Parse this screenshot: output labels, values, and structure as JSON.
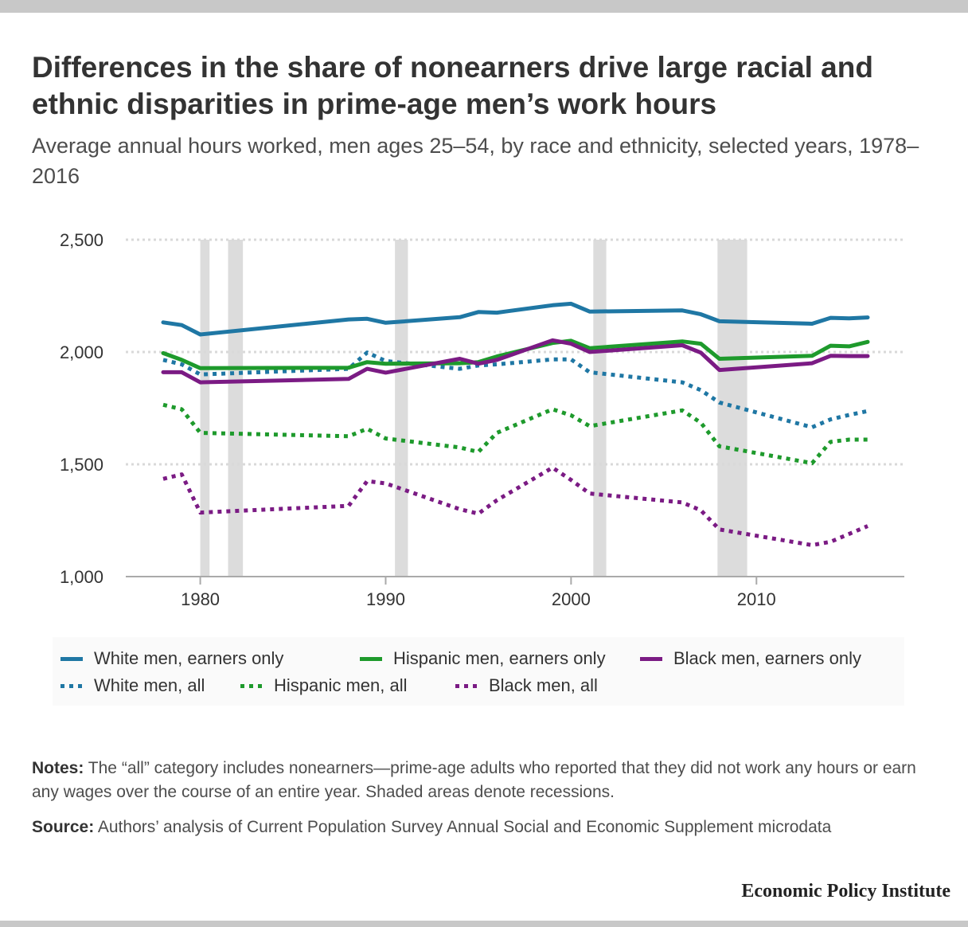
{
  "title": "Differences in the share of nonearners drive large racial and ethnic disparities in prime-age men’s work hours",
  "subtitle": "Average annual hours worked, men ages 25–54, by race and ethnicity, selected years, 1978–2016",
  "notes": {
    "label": "Notes:",
    "text": " The “all” category includes nonearners—prime-age adults who reported that they did not work any hours or earn any wages over the course of an entire year. Shaded areas denote recessions."
  },
  "source": {
    "label": "Source:",
    "text": " Authors’ analysis of Current Population Survey Annual Social and Economic Supplement microdata"
  },
  "brand": "Economic Policy Institute",
  "colors": {
    "white": "#1f77a4",
    "hispanic": "#1e9a2c",
    "black": "#7b1b84",
    "recession": "#dcdcdc",
    "grid": "#d9d9d9",
    "axis": "#aaaaaa"
  },
  "chart_data": {
    "type": "line",
    "title": "Differences in the share of nonearners drive large racial and ethnic disparities in prime-age men’s work hours",
    "subtitle": "Average annual hours worked, men ages 25–54, by race and ethnicity, selected years, 1978–2016",
    "xlabel": "",
    "ylabel": "",
    "xlim": [
      1976,
      2018
    ],
    "ylim": [
      1000,
      2500
    ],
    "xticks": [
      1980,
      1990,
      2000,
      2010
    ],
    "xtick_labels": [
      "1980",
      "1990",
      "2000",
      "2010"
    ],
    "yticks": [
      1000,
      1500,
      2000,
      2500
    ],
    "ytick_labels": [
      "1,000",
      "1,500",
      "2,000",
      "2,500"
    ],
    "grid": "horizontal dotted",
    "legend_position": "bottom",
    "recessions": [
      [
        1980.0,
        1980.5
      ],
      [
        1981.5,
        1982.3
      ],
      [
        1990.5,
        1991.2
      ],
      [
        2001.2,
        2001.9
      ],
      [
        2007.9,
        2009.5
      ]
    ],
    "series": [
      {
        "name": "White men, earners only",
        "group": "white",
        "style": "solid",
        "x": [
          1978,
          1979,
          1980,
          1988,
          1989,
          1990,
          1994,
          1995,
          1996,
          1999,
          2000,
          2001,
          2006,
          2007,
          2008,
          2013,
          2014,
          2015,
          2016
        ],
        "y": [
          2132,
          2120,
          2078,
          2145,
          2148,
          2130,
          2155,
          2178,
          2175,
          2208,
          2215,
          2180,
          2185,
          2168,
          2137,
          2126,
          2152,
          2150,
          2154
        ]
      },
      {
        "name": "Hispanic men, earners only",
        "group": "hispanic",
        "style": "solid",
        "x": [
          1978,
          1979,
          1980,
          1988,
          1989,
          1990,
          1994,
          1995,
          1996,
          1999,
          2000,
          2001,
          2006,
          2007,
          2008,
          2013,
          2014,
          2015,
          2016
        ],
        "y": [
          1995,
          1965,
          1928,
          1930,
          1955,
          1948,
          1950,
          1955,
          1980,
          2040,
          2050,
          2017,
          2047,
          2037,
          1970,
          1983,
          2028,
          2025,
          2045
        ]
      },
      {
        "name": "Black men, earners only",
        "group": "black",
        "style": "solid",
        "x": [
          1978,
          1979,
          1980,
          1988,
          1989,
          1990,
          1994,
          1995,
          1996,
          1999,
          2000,
          2001,
          2006,
          2007,
          2008,
          2013,
          2014,
          2015,
          2016
        ],
        "y": [
          1910,
          1910,
          1865,
          1880,
          1925,
          1908,
          1970,
          1948,
          1965,
          2052,
          2037,
          2000,
          2030,
          1997,
          1920,
          1950,
          1983,
          1982,
          1982
        ]
      },
      {
        "name": "White men, all",
        "group": "white",
        "style": "dotted",
        "x": [
          1978,
          1979,
          1980,
          1988,
          1989,
          1990,
          1994,
          1995,
          1996,
          1999,
          2000,
          2001,
          2006,
          2007,
          2008,
          2013,
          2014,
          2015,
          2016
        ],
        "y": [
          1965,
          1945,
          1900,
          1925,
          1998,
          1960,
          1925,
          1940,
          1945,
          1967,
          1967,
          1910,
          1865,
          1830,
          1775,
          1665,
          1700,
          1720,
          1737
        ]
      },
      {
        "name": "Hispanic men, all",
        "group": "hispanic",
        "style": "dotted",
        "x": [
          1978,
          1979,
          1980,
          1988,
          1989,
          1990,
          1994,
          1995,
          1996,
          1999,
          2000,
          2001,
          2006,
          2007,
          2008,
          2013,
          2014,
          2015,
          2016
        ],
        "y": [
          1765,
          1745,
          1640,
          1625,
          1658,
          1615,
          1575,
          1555,
          1640,
          1745,
          1718,
          1670,
          1740,
          1685,
          1580,
          1505,
          1600,
          1610,
          1610
        ]
      },
      {
        "name": "Black men, all",
        "group": "black",
        "style": "dotted",
        "x": [
          1978,
          1979,
          1980,
          1988,
          1989,
          1990,
          1994,
          1995,
          1996,
          1999,
          2000,
          2001,
          2006,
          2007,
          2008,
          2013,
          2014,
          2015,
          2016
        ],
        "y": [
          1435,
          1455,
          1285,
          1315,
          1425,
          1415,
          1300,
          1280,
          1340,
          1485,
          1430,
          1370,
          1330,
          1295,
          1210,
          1140,
          1155,
          1190,
          1225
        ]
      }
    ]
  }
}
